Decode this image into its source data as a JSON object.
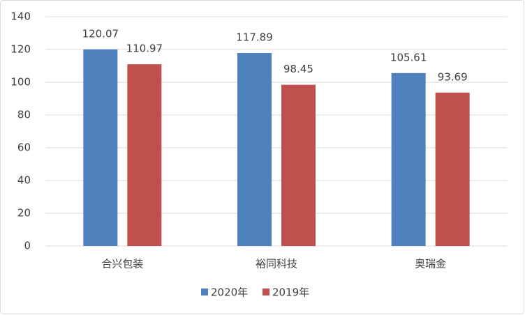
{
  "chart_data": {
    "type": "bar",
    "categories": [
      "合兴包装",
      "裕同科技",
      "奥瑞金"
    ],
    "series": [
      {
        "name": "2020年",
        "color": "#4f81bd",
        "values": [
          120.07,
          117.89,
          105.61
        ]
      },
      {
        "name": "2019年",
        "color": "#c0504d",
        "values": [
          110.97,
          98.45,
          93.69
        ]
      }
    ],
    "ylim": [
      0,
      140
    ],
    "yticks": [
      0,
      20,
      40,
      60,
      80,
      100,
      120,
      140
    ],
    "grid": true,
    "legend": "bottom"
  }
}
